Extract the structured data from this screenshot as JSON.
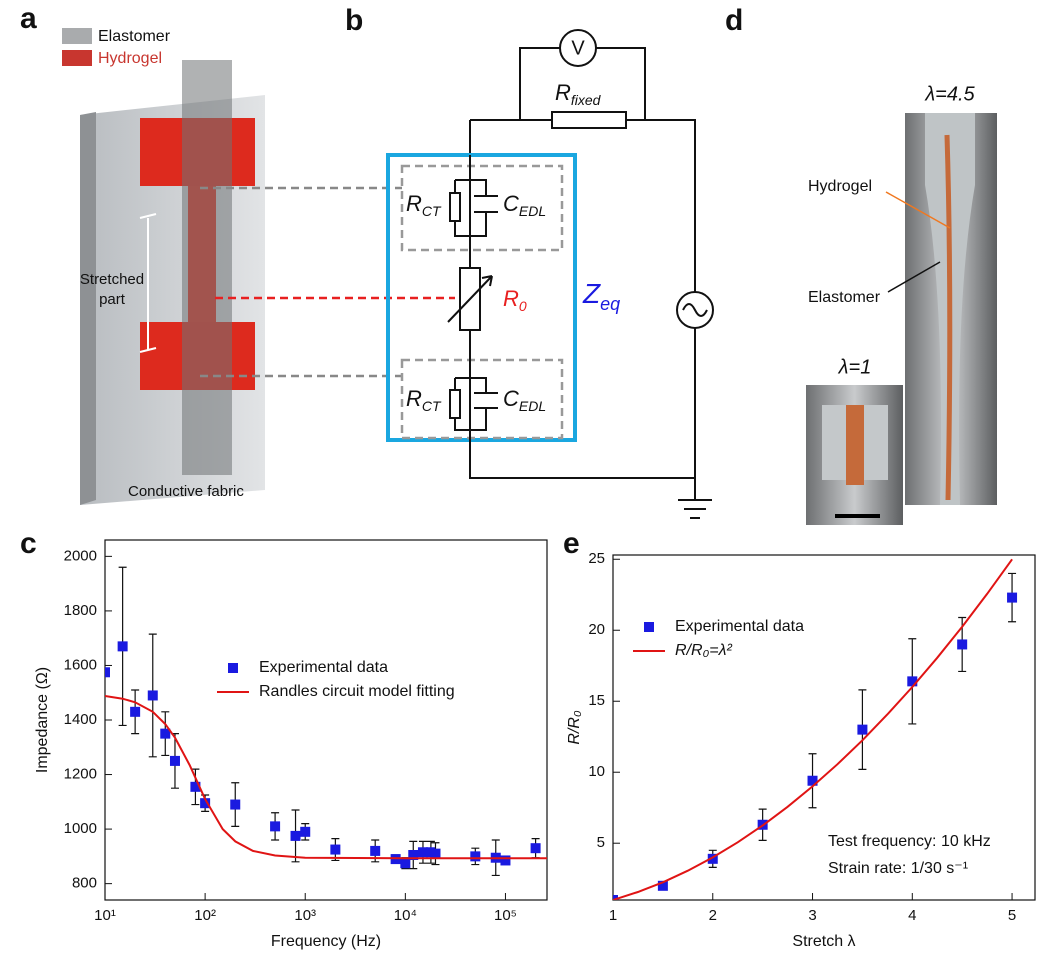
{
  "panels": {
    "a": {
      "label": "a",
      "legend": [
        "Elastomer",
        "Hydrogel"
      ],
      "stretched": [
        "Stretched",
        "part"
      ],
      "fabric": "Conductive fabric"
    },
    "b": {
      "label": "b",
      "voltmeter": "V",
      "r_fixed": [
        "R",
        "fixed"
      ],
      "r_ct": [
        "R",
        "CT"
      ],
      "c_edl": [
        "C",
        "EDL"
      ],
      "r0": [
        "R",
        "0"
      ],
      "z_eq": [
        "Z",
        "eq"
      ]
    },
    "c": {
      "label": "c"
    },
    "d": {
      "label": "d",
      "lambda_high": "λ=4.5",
      "lambda_low": "λ=1",
      "hydrogel": "Hydrogel",
      "elastomer": "Elastomer"
    },
    "e": {
      "label": "e"
    }
  },
  "chart_data": [
    {
      "type": "scatter",
      "xlabel": "Frequency (Hz)",
      "ylabel": "Impedance (Ω)",
      "xlog": true,
      "xlim": [
        10,
        260000
      ],
      "ylim": [
        740,
        2060
      ],
      "xticks": [
        {
          "value": 10,
          "label": "10¹"
        },
        {
          "value": 100,
          "label": "10²"
        },
        {
          "value": 1000,
          "label": "10³"
        },
        {
          "value": 10000,
          "label": "10⁴"
        },
        {
          "value": 100000,
          "label": "10⁵"
        }
      ],
      "yticks": [
        800,
        1000,
        1200,
        1400,
        1600,
        1800,
        2000
      ],
      "legend": "center right",
      "series": [
        {
          "name": "Experimental data",
          "type": "scatter",
          "color": "#1a1ae0",
          "x": [
            10,
            15,
            20,
            30,
            40,
            50,
            80,
            100,
            200,
            500,
            800,
            1000,
            2000,
            5000,
            8000,
            10000,
            12000,
            15000,
            18000,
            20000,
            50000,
            80000,
            100000,
            200000
          ],
          "values": [
            1575,
            1670,
            1430,
            1490,
            1350,
            1250,
            1155,
            1095,
            1090,
            1010,
            975,
            990,
            925,
            920,
            890,
            875,
            905,
            915,
            915,
            910,
            900,
            895,
            885,
            930
          ],
          "errors": [
            0,
            290,
            80,
            225,
            80,
            100,
            65,
            30,
            80,
            50,
            95,
            30,
            40,
            40,
            15,
            20,
            50,
            40,
            40,
            40,
            30,
            65,
            10,
            35
          ]
        },
        {
          "name": "Randles circuit model fitting",
          "type": "line",
          "color": "#e01414",
          "x": [
            10,
            15,
            20,
            30,
            40,
            50,
            70,
            100,
            150,
            200,
            300,
            500,
            1000,
            10000,
            260000
          ],
          "values": [
            1488,
            1478,
            1465,
            1430,
            1385,
            1335,
            1235,
            1110,
            1000,
            955,
            920,
            903,
            895,
            893,
            893
          ]
        }
      ]
    },
    {
      "type": "scatter",
      "xlabel": "Stretch λ",
      "ylabel": "R/R₀",
      "xlim": [
        1,
        5.23
      ],
      "ylim": [
        1,
        25.3
      ],
      "xticks": [
        1,
        2,
        3,
        4,
        5
      ],
      "yticks": [
        5,
        10,
        15,
        20,
        25
      ],
      "legend": "upper left",
      "annotations": [
        "Test frequency: 10 kHz",
        "Strain rate: 1/30 s⁻¹"
      ],
      "series": [
        {
          "name": "Experimental data",
          "type": "scatter",
          "color": "#1a1ae0",
          "x": [
            1,
            1.5,
            2,
            2.5,
            3,
            3.5,
            4,
            4.5,
            5
          ],
          "values": [
            1,
            2,
            3.9,
            6.3,
            9.4,
            13,
            16.4,
            19,
            22.3
          ],
          "errors": [
            0,
            0.2,
            0.6,
            1.1,
            1.9,
            2.8,
            3,
            1.9,
            1.7
          ]
        },
        {
          "name": "R/R₀=λ²",
          "type": "line",
          "color": "#e01414",
          "x": [
            1,
            1.25,
            1.5,
            1.75,
            2,
            2.25,
            2.5,
            2.75,
            3,
            3.25,
            3.5,
            3.75,
            4,
            4.25,
            4.5,
            4.75,
            5
          ],
          "values": [
            1,
            1.5625,
            2.25,
            3.0625,
            4,
            5.0625,
            6.25,
            7.5625,
            9,
            10.5625,
            12.25,
            14.0625,
            16,
            18.0625,
            20.25,
            22.5625,
            25
          ]
        }
      ]
    }
  ]
}
